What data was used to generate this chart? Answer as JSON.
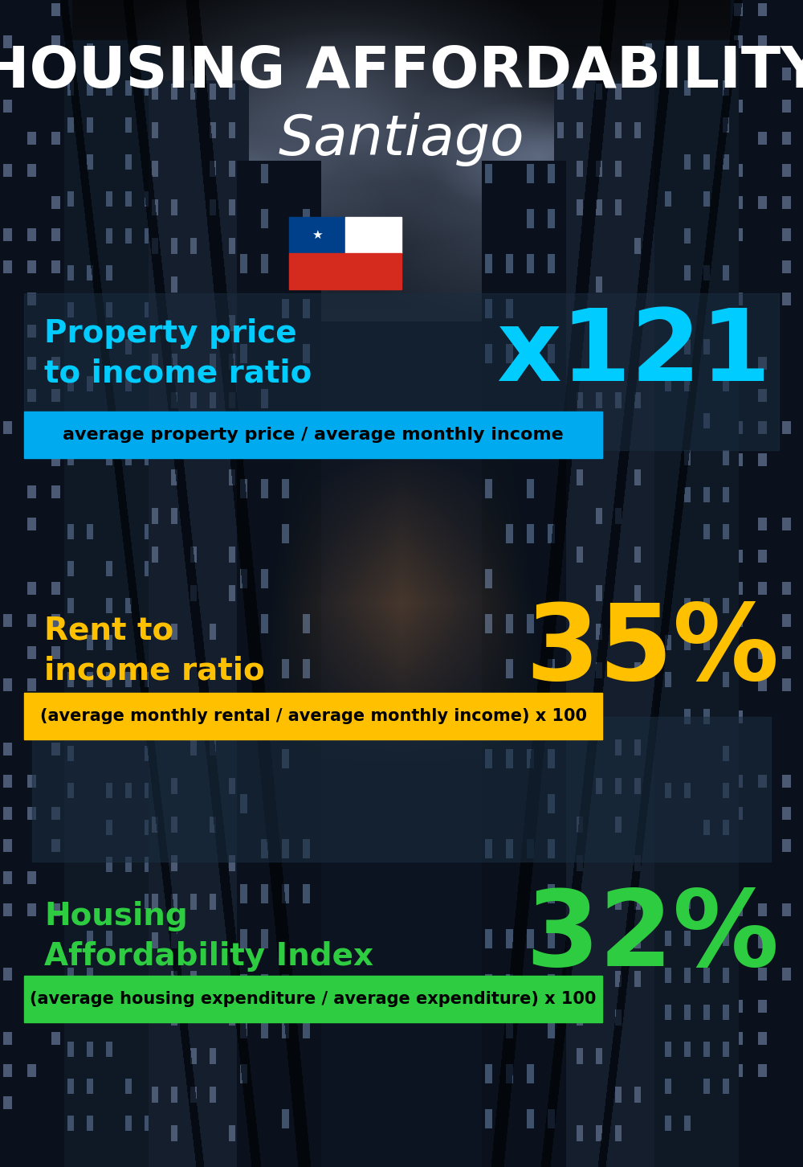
{
  "title_line1": "HOUSING AFFORDABILITY",
  "title_line2": "Santiago",
  "bg_color": "#0d1520",
  "section1_label": "Property price\nto income ratio",
  "section1_value": "x121",
  "section1_label_color": "#00ccff",
  "section1_value_color": "#00ccff",
  "section1_band_color": "#00aaee",
  "section1_band_text": "average property price / average monthly income",
  "section2_label": "Rent to\nincome ratio",
  "section2_value": "35%",
  "section2_label_color": "#ffc000",
  "section2_value_color": "#ffc000",
  "section2_band_color": "#ffc000",
  "section2_band_text": "(average monthly rental / average monthly income) x 100",
  "section3_label": "Housing\nAffordability Index",
  "section3_value": "32%",
  "section3_label_color": "#2ecc40",
  "section3_value_color": "#2ecc40",
  "section3_band_color": "#2ecc40",
  "section3_band_text": "(average housing expenditure / average expenditure) x 100",
  "flag_blue": "#003f8a",
  "flag_white": "#ffffff",
  "flag_red": "#d52b1e",
  "title_color": "#ffffff",
  "band_text_color": "#000000"
}
